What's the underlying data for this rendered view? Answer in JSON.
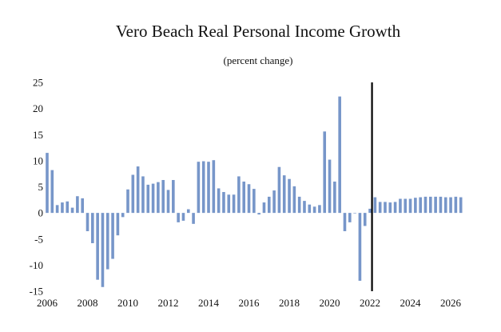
{
  "chart_data": {
    "type": "bar",
    "title": "Vero Beach Real Personal Income Growth",
    "subtitle": "(percent change)",
    "xlabel": "",
    "ylabel": "",
    "ylim": [
      -15,
      25
    ],
    "yticks": [
      25,
      20,
      15,
      10,
      5,
      0,
      -5,
      -10,
      -15
    ],
    "xlim": [
      2006,
      2026.75
    ],
    "xticks": [
      2006,
      2008,
      2010,
      2012,
      2014,
      2016,
      2018,
      2020,
      2022,
      2024,
      2026
    ],
    "vline_x": 2022.1,
    "bar_color": "#7796c9",
    "vline_color": "#000000",
    "series": [
      {
        "name": "Real Personal Income Growth",
        "x": [
          2006.0,
          2006.25,
          2006.5,
          2006.75,
          2007.0,
          2007.25,
          2007.5,
          2007.75,
          2008.0,
          2008.25,
          2008.5,
          2008.75,
          2009.0,
          2009.25,
          2009.5,
          2009.75,
          2010.0,
          2010.25,
          2010.5,
          2010.75,
          2011.0,
          2011.25,
          2011.5,
          2011.75,
          2012.0,
          2012.25,
          2012.5,
          2012.75,
          2013.0,
          2013.25,
          2013.5,
          2013.75,
          2014.0,
          2014.25,
          2014.5,
          2014.75,
          2015.0,
          2015.25,
          2015.5,
          2015.75,
          2016.0,
          2016.25,
          2016.5,
          2016.75,
          2017.0,
          2017.25,
          2017.5,
          2017.75,
          2018.0,
          2018.25,
          2018.5,
          2018.75,
          2019.0,
          2019.25,
          2019.5,
          2019.75,
          2020.0,
          2020.25,
          2020.5,
          2020.75,
          2021.0,
          2021.25,
          2021.5,
          2021.75,
          2022.0,
          2022.25,
          2022.5,
          2022.75,
          2023.0,
          2023.25,
          2023.5,
          2023.75,
          2024.0,
          2024.25,
          2024.5,
          2024.75,
          2025.0,
          2025.25,
          2025.5,
          2025.75,
          2026.0,
          2026.25,
          2026.5
        ],
        "values": [
          11.5,
          8.2,
          1.5,
          2.0,
          2.2,
          1.0,
          3.2,
          2.8,
          -3.5,
          -5.8,
          -12.8,
          -14.2,
          -10.8,
          -8.8,
          -4.3,
          -0.8,
          4.5,
          7.3,
          8.9,
          7.0,
          5.4,
          5.6,
          5.9,
          6.3,
          4.4,
          6.3,
          -1.8,
          -1.5,
          0.7,
          -2.1,
          9.8,
          9.9,
          9.8,
          10.1,
          4.7,
          4.0,
          3.5,
          3.5,
          7.0,
          6.0,
          5.5,
          4.6,
          -0.3,
          2.0,
          3.1,
          4.3,
          8.8,
          7.2,
          6.5,
          5.1,
          3.1,
          2.3,
          1.6,
          1.2,
          1.5,
          15.6,
          10.2,
          6.0,
          22.3,
          -3.5,
          -1.8,
          0.0,
          -13.0,
          -2.5,
          0.8,
          3.0,
          2.1,
          2.1,
          2.0,
          2.1,
          2.7,
          2.7,
          2.7,
          2.9,
          3.0,
          3.1,
          3.1,
          3.1,
          3.1,
          3.0,
          3.0,
          3.1,
          3.0
        ]
      }
    ]
  }
}
